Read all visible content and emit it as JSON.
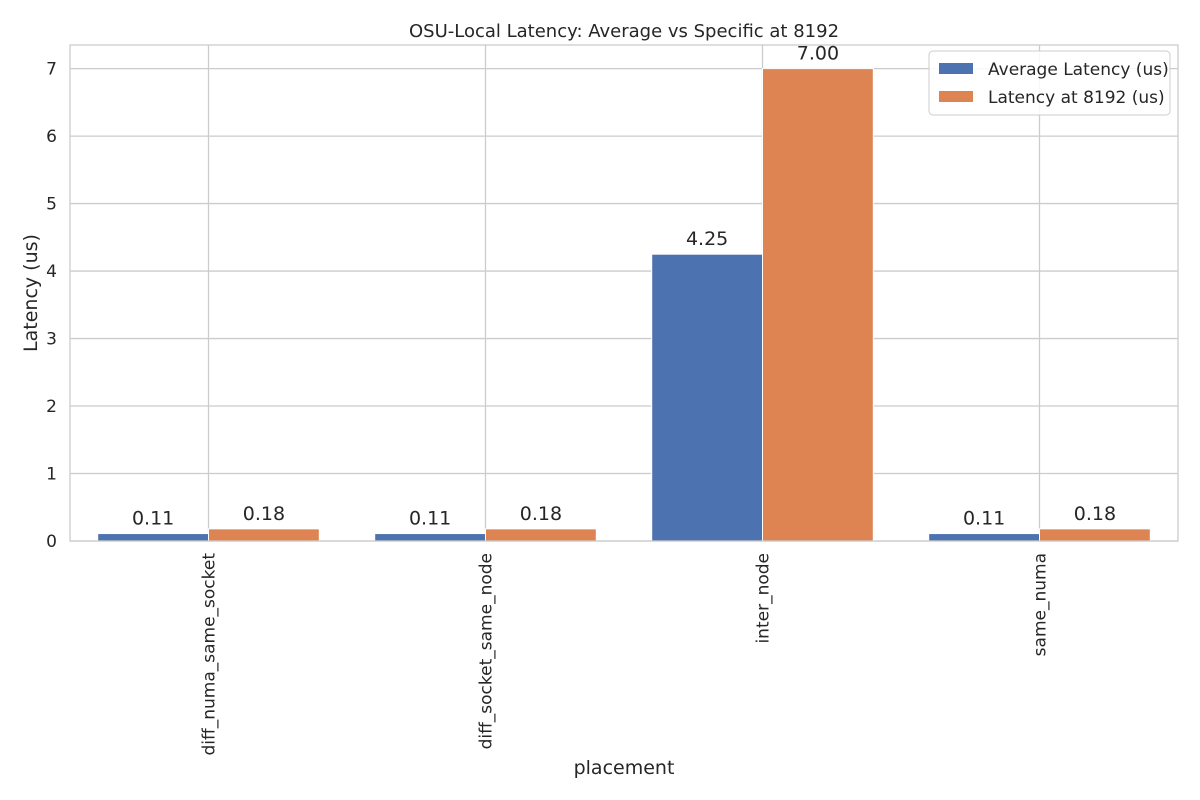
{
  "chart_data": {
    "type": "bar",
    "title": "OSU-Local Latency: Average vs Specific at 8192",
    "xlabel": "placement",
    "ylabel": "Latency (us)",
    "ylim": [
      0,
      7.35
    ],
    "yticks": [
      0,
      1,
      2,
      3,
      4,
      5,
      6,
      7
    ],
    "grid": true,
    "legend_position": "top-right",
    "categories": [
      "diff_numa_same_socket",
      "diff_socket_same_node",
      "inter_node",
      "same_numa"
    ],
    "series": [
      {
        "name": "Average Latency (us)",
        "color": "#4c72b0",
        "values": [
          0.11,
          0.11,
          4.25,
          0.11
        ],
        "labels": [
          "0.11",
          "0.11",
          "4.25",
          "0.11"
        ]
      },
      {
        "name": "Latency at 8192 (us)",
        "color": "#dd8452",
        "values": [
          0.18,
          0.18,
          7.0,
          0.18
        ],
        "labels": [
          "0.18",
          "0.18",
          "7.00",
          "0.18"
        ]
      }
    ]
  }
}
